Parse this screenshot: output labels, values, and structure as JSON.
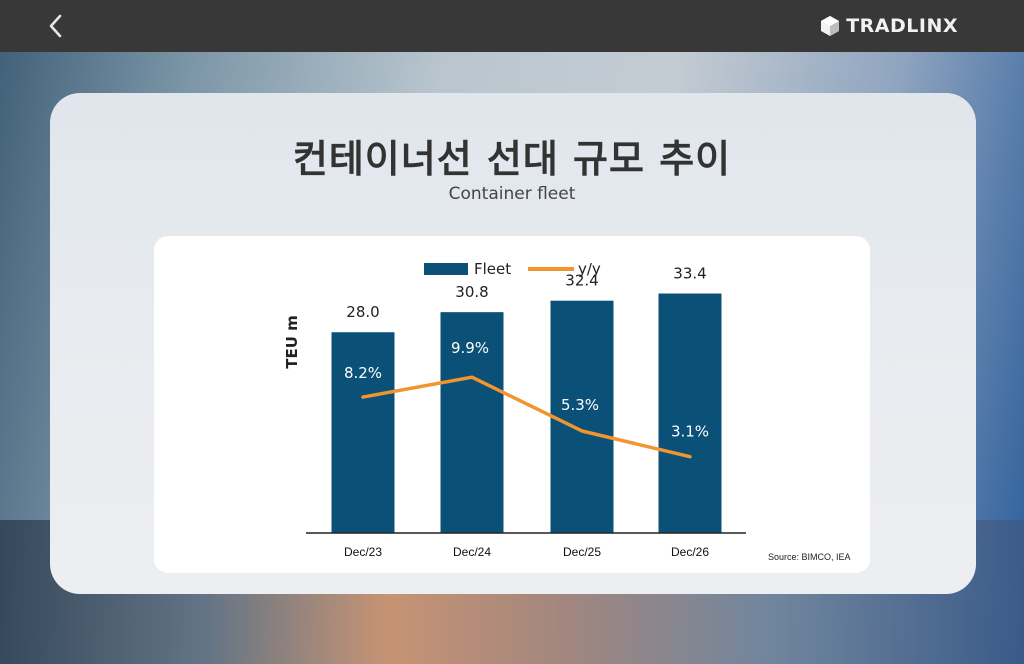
{
  "header": {
    "back_icon": "chevron-left-icon",
    "brand_name": "TRADLINX",
    "brand_icon": "cube-logo-icon"
  },
  "content": {
    "title": "컨테이너선 선대 규모 추이",
    "subtitle": "Container fleet"
  },
  "chart_data": {
    "type": "bar",
    "categories": [
      "Dec/23",
      "Dec/24",
      "Dec/25",
      "Dec/26"
    ],
    "series": [
      {
        "name": "Fleet",
        "type": "bar",
        "color": "#0b5077",
        "values": [
          28.0,
          30.8,
          32.4,
          33.4
        ],
        "labels": [
          "28.0",
          "30.8",
          "32.4",
          "33.4"
        ]
      },
      {
        "name": "y/y",
        "type": "line",
        "color": "#f2942f",
        "values": [
          8.2,
          9.9,
          5.3,
          3.1
        ],
        "labels": [
          "8.2%",
          "9.9%",
          "5.3%",
          "3.1%"
        ]
      }
    ],
    "ylabel": "TEU m",
    "legend": [
      "Fleet",
      "y/y"
    ],
    "legend_position": "top-center",
    "source": "Source: BIMCO, IEA",
    "colors": {
      "bar": "#0b5077",
      "line": "#f2942f"
    }
  }
}
